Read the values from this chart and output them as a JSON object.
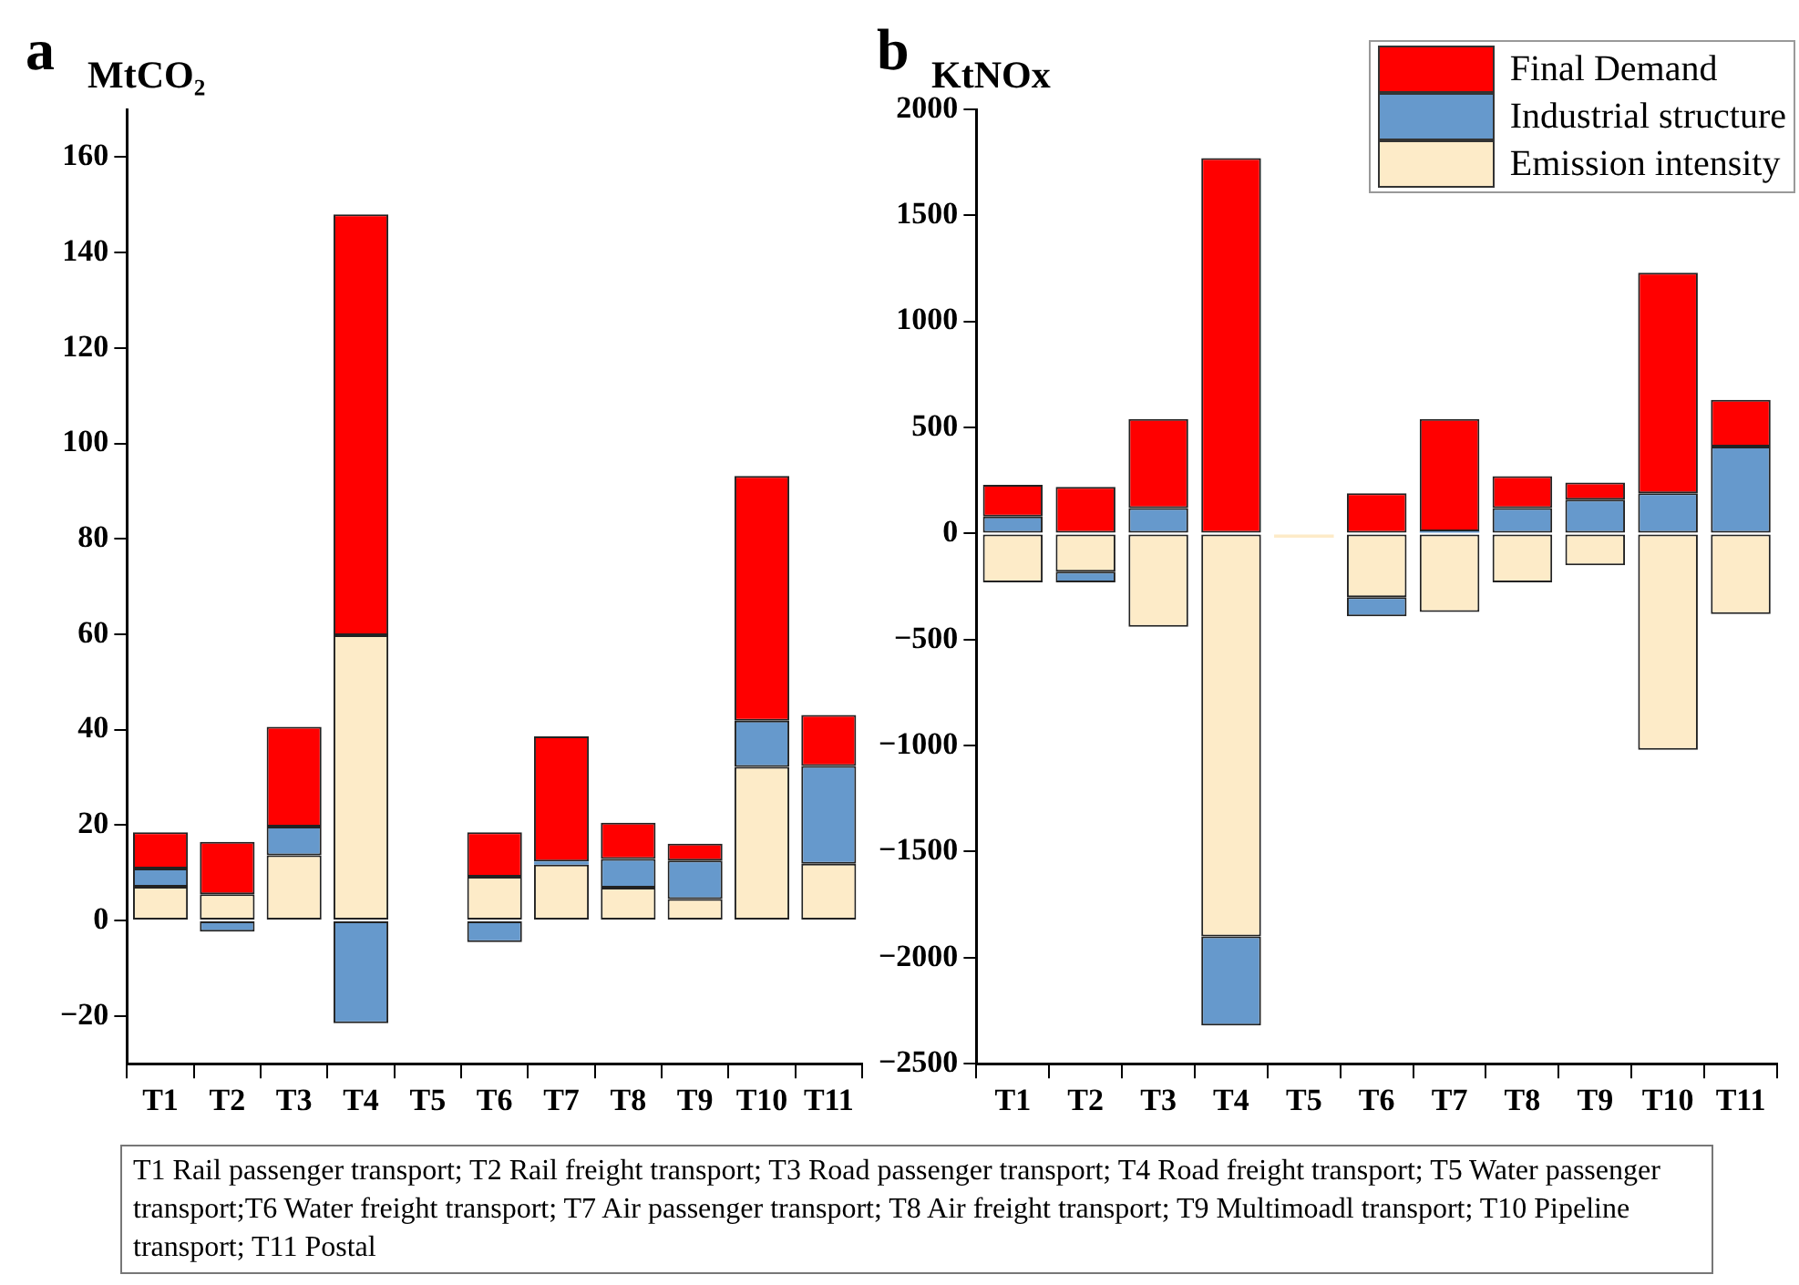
{
  "chart_data": [
    {
      "type": "bar",
      "title": "a",
      "ylabel": "MtCO₂",
      "stacked": true,
      "categories": [
        "T1",
        "T2",
        "T3",
        "T4",
        "T5",
        "T6",
        "T7",
        "T8",
        "T9",
        "T10",
        "T11"
      ],
      "ylim": [
        -30,
        170
      ],
      "yticks": [
        -20,
        0,
        20,
        40,
        60,
        80,
        100,
        120,
        140,
        160
      ],
      "grid": false,
      "legend": false,
      "series": [
        {
          "color": "#fdebc8",
          "values": [
            7.1,
            5.5,
            13.7,
            59.8,
            0,
            9.2,
            11.7,
            6.9,
            4.5,
            32.2,
            11.9
          ]
        },
        {
          "color": "#6699cc",
          "values": [
            3.8,
            -2.3,
            6,
            -21.5,
            0,
            -4.5,
            0.7,
            6,
            8.1,
            9.7,
            20.5
          ]
        },
        {
          "color": "#ff0000",
          "values": [
            7.6,
            11,
            20.9,
            88.2,
            null,
            9.3,
            26.2,
            7.6,
            3.5,
            51.3,
            10.7
          ]
        }
      ],
      "annotations": [
        "T1 Rail passenger transport; T2 Rail freight transport; T3 Road passenger transport; T4 Road freight transport; T5 Water passenger transport;T6 Water freight transport; T7 Air passenger transport; T8 Air freight transport; T9 Multimoadl transport; T10 Pipeline transport; T11 Postal"
      ]
    },
    {
      "type": "bar",
      "title": "b",
      "ylabel": "KtNOx",
      "stacked": true,
      "categories": [
        "T1",
        "T2",
        "T3",
        "T4",
        "T5",
        "T6",
        "T7",
        "T8",
        "T9",
        "T10",
        "T11"
      ],
      "ylim": [
        -2500,
        2000
      ],
      "yticks": [
        -2500,
        -2000,
        -1500,
        -1000,
        -500,
        0,
        500,
        1000,
        1500,
        2000
      ],
      "grid": false,
      "legend": "top right",
      "series": [
        {
          "name": "Emission intensity",
          "color": "#fdebc8",
          "values": [
            -230,
            -180,
            -440,
            -1900,
            -20,
            -300,
            -370,
            -230,
            -150,
            -1020,
            -380
          ]
        },
        {
          "name": "Industrial structure",
          "color": "#6699cc",
          "values": [
            80,
            -50,
            120,
            -420,
            0,
            -90,
            10,
            120,
            160,
            190,
            410
          ]
        },
        {
          "name": "Final Demand",
          "color": "#ff0000",
          "values": [
            150,
            220,
            420,
            1770,
            0,
            190,
            530,
            150,
            80,
            1040,
            220
          ]
        }
      ]
    }
  ]
}
